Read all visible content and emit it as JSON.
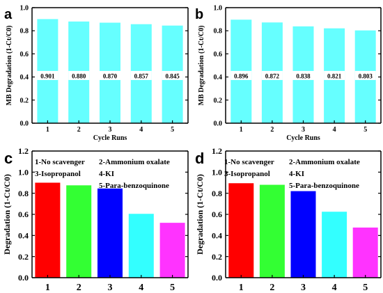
{
  "colors": {
    "cyan": "#66FFFF",
    "red": "#FF0000",
    "green": "#33FF33",
    "blue": "#0000FF",
    "cyan2": "#33FFFF",
    "magenta": "#FF33FF",
    "axis": "#000000"
  },
  "chart_data": [
    {
      "panel": "a",
      "type": "bar",
      "categories": [
        "1",
        "2",
        "3",
        "4",
        "5"
      ],
      "values": [
        0.901,
        0.88,
        0.87,
        0.857,
        0.845
      ],
      "data_labels": [
        "0.901",
        "0.880",
        "0.870",
        "0.857",
        "0.845"
      ],
      "xlabel": "Cycle Runs",
      "ylabel": "MB Degradation (1-Ct/C0)",
      "ylim": [
        0,
        1.0
      ],
      "yticks": [
        "0.0",
        "0.2",
        "0.4",
        "0.6",
        "0.8",
        "1.0"
      ],
      "bar_colors": [
        "cyan",
        "cyan",
        "cyan",
        "cyan",
        "cyan"
      ]
    },
    {
      "panel": "b",
      "type": "bar",
      "categories": [
        "1",
        "2",
        "3",
        "4",
        "5"
      ],
      "values": [
        0.896,
        0.872,
        0.838,
        0.821,
        0.803
      ],
      "data_labels": [
        "0.896",
        "0.872",
        "0.838",
        "0.821",
        "0.803"
      ],
      "xlabel": "Cycle Runs",
      "ylabel": "MB Degradation (1-Ct/C0)",
      "ylim": [
        0,
        1.0
      ],
      "yticks": [
        "0.0",
        "0.2",
        "0.4",
        "0.6",
        "0.8",
        "1.0"
      ],
      "bar_colors": [
        "cyan",
        "cyan",
        "cyan",
        "cyan",
        "cyan"
      ]
    },
    {
      "panel": "c",
      "type": "bar",
      "categories": [
        "1",
        "2",
        "3",
        "4",
        "5"
      ],
      "values": [
        0.9,
        0.875,
        0.845,
        0.605,
        0.52
      ],
      "data_labels": [],
      "xlabel": "",
      "ylabel": "Degradation (1-Ct/C0)",
      "ylim": [
        0,
        1.2
      ],
      "yticks": [
        "0.0",
        "0.2",
        "0.4",
        "0.6",
        "0.8",
        "1.0",
        "1.2"
      ],
      "bar_colors": [
        "red",
        "green",
        "blue",
        "cyan2",
        "magenta"
      ],
      "legend": [
        "1-No scavenger",
        "2-Ammonium oxalate",
        "3-Isopropanol",
        "4-KI",
        "5-Para-benzoquinone"
      ]
    },
    {
      "panel": "d",
      "type": "bar",
      "categories": [
        "1",
        "2",
        "3",
        "4",
        "5"
      ],
      "values": [
        0.895,
        0.88,
        0.82,
        0.625,
        0.475
      ],
      "data_labels": [],
      "xlabel": "",
      "ylabel": "Degradation (1-Ct/C0)",
      "ylim": [
        0,
        1.2
      ],
      "yticks": [
        "0.0",
        "0.2",
        "0.4",
        "0.6",
        "0.8",
        "1.0",
        "1.2"
      ],
      "bar_colors": [
        "red",
        "green",
        "blue",
        "cyan2",
        "magenta"
      ],
      "legend": [
        "1-No scavenger",
        "2-Ammonium oxalate",
        "3-Isopropanol",
        "4-KI",
        "5-Para-benzoquinone"
      ]
    }
  ]
}
